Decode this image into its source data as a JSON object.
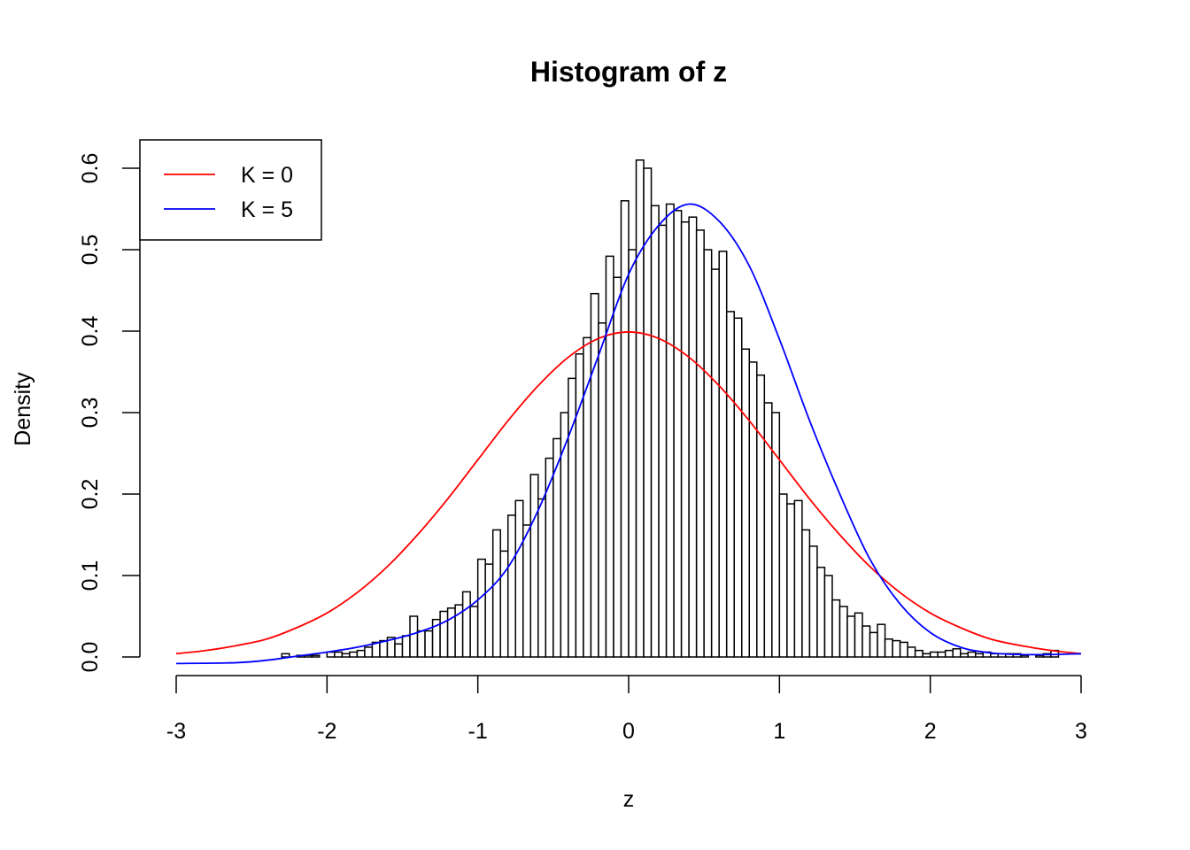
{
  "chart_data": {
    "type": "bar",
    "title": "Histogram of z",
    "xlabel": "z",
    "ylabel": "Density",
    "xlim": [
      -3,
      3
    ],
    "ylim": [
      0,
      0.6
    ],
    "x_ticks": [
      "-3",
      "-2",
      "-1",
      "0",
      "1",
      "2",
      "3"
    ],
    "y_ticks": [
      "0.0",
      "0.1",
      "0.2",
      "0.3",
      "0.4",
      "0.5",
      "0.6"
    ],
    "grid": false,
    "legend_position": "top-left",
    "histogram": {
      "bin_width": 0.05,
      "start": -2.3,
      "densities": [
        0.004,
        0.0,
        0.002,
        0.002,
        0.002,
        0.0,
        0.006,
        0.006,
        0.004,
        0.006,
        0.008,
        0.012,
        0.018,
        0.02,
        0.024,
        0.016,
        0.026,
        0.05,
        0.032,
        0.032,
        0.046,
        0.056,
        0.06,
        0.064,
        0.08,
        0.062,
        0.12,
        0.114,
        0.156,
        0.13,
        0.174,
        0.192,
        0.162,
        0.224,
        0.194,
        0.244,
        0.268,
        0.3,
        0.342,
        0.372,
        0.392,
        0.446,
        0.41,
        0.492,
        0.466,
        0.56,
        0.5,
        0.61,
        0.6,
        0.554,
        0.53,
        0.556,
        0.548,
        0.534,
        0.54,
        0.524,
        0.5,
        0.476,
        0.498,
        0.424,
        0.416,
        0.378,
        0.362,
        0.346,
        0.312,
        0.3,
        0.2,
        0.188,
        0.192,
        0.156,
        0.136,
        0.11,
        0.1,
        0.07,
        0.062,
        0.05,
        0.054,
        0.038,
        0.03,
        0.04,
        0.022,
        0.02,
        0.018,
        0.012,
        0.008,
        0.004,
        0.006,
        0.006,
        0.008,
        0.01,
        0.004,
        0.006,
        0.004,
        0.006,
        0.004,
        0.004,
        0.004,
        0.004,
        0.002,
        0.0,
        0.002,
        0.004,
        0.008
      ],
      "color": "#ffffff",
      "border": "#000000"
    },
    "series": [
      {
        "name": "K = 0",
        "color": "#ff0000",
        "x": [
          -3.0,
          -2.8,
          -2.6,
          -2.4,
          -2.2,
          -2.0,
          -1.8,
          -1.6,
          -1.4,
          -1.2,
          -1.0,
          -0.8,
          -0.6,
          -0.4,
          -0.2,
          0.0,
          0.2,
          0.4,
          0.6,
          0.8,
          1.0,
          1.2,
          1.4,
          1.6,
          1.8,
          2.0,
          2.2,
          2.4,
          2.6,
          2.8,
          3.0
        ],
        "y": [
          0.004,
          0.008,
          0.014,
          0.022,
          0.036,
          0.054,
          0.079,
          0.111,
          0.15,
          0.194,
          0.242,
          0.29,
          0.333,
          0.368,
          0.391,
          0.399,
          0.391,
          0.368,
          0.333,
          0.29,
          0.242,
          0.194,
          0.15,
          0.111,
          0.079,
          0.054,
          0.036,
          0.022,
          0.014,
          0.008,
          0.004
        ]
      },
      {
        "name": "K = 5",
        "color": "#0000ff",
        "x": [
          -3.0,
          -2.6,
          -2.4,
          -2.2,
          -2.0,
          -1.8,
          -1.6,
          -1.4,
          -1.2,
          -1.0,
          -0.8,
          -0.6,
          -0.4,
          -0.2,
          0.0,
          0.2,
          0.4,
          0.6,
          0.8,
          1.0,
          1.2,
          1.4,
          1.6,
          1.8,
          2.0,
          2.2,
          2.4,
          2.6,
          2.8,
          3.0
        ],
        "y": [
          -0.008,
          -0.007,
          -0.004,
          0.001,
          0.006,
          0.012,
          0.02,
          0.03,
          0.045,
          0.07,
          0.11,
          0.18,
          0.27,
          0.37,
          0.47,
          0.53,
          0.556,
          0.535,
          0.48,
          0.39,
          0.29,
          0.2,
          0.12,
          0.065,
          0.03,
          0.012,
          0.005,
          0.003,
          0.003,
          0.004
        ]
      }
    ]
  }
}
